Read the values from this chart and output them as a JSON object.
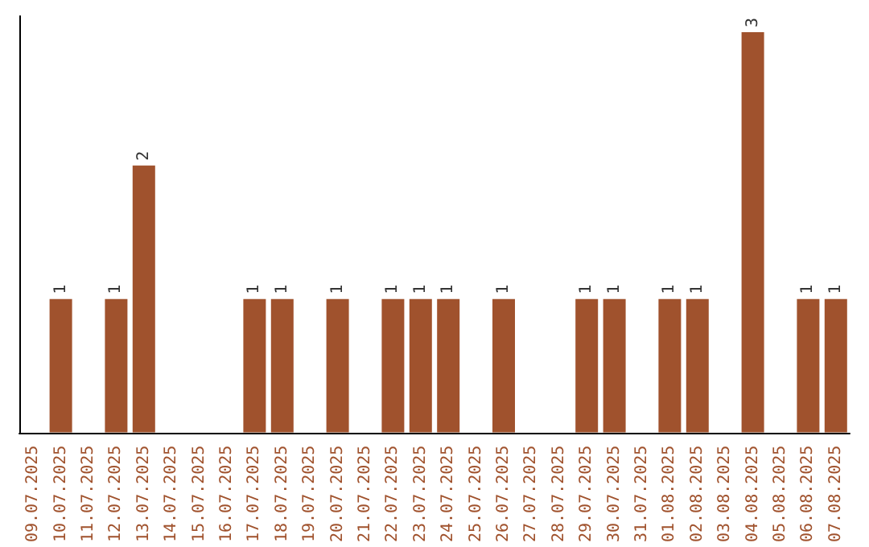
{
  "chart_data": {
    "type": "bar",
    "categories": [
      "09.07.2025",
      "10.07.2025",
      "11.07.2025",
      "12.07.2025",
      "13.07.2025",
      "14.07.2025",
      "15.07.2025",
      "16.07.2025",
      "17.07.2025",
      "18.07.2025",
      "19.07.2025",
      "20.07.2025",
      "21.07.2025",
      "22.07.2025",
      "23.07.2025",
      "24.07.2025",
      "25.07.2025",
      "26.07.2025",
      "27.07.2025",
      "28.07.2025",
      "29.07.2025",
      "30.07.2025",
      "31.07.2025",
      "01.08.2025",
      "02.08.2025",
      "03.08.2025",
      "04.08.2025",
      "05.08.2025",
      "06.08.2025",
      "07.08.2025"
    ],
    "values": [
      0,
      1,
      0,
      1,
      2,
      0,
      0,
      0,
      1,
      1,
      0,
      1,
      0,
      1,
      1,
      1,
      0,
      1,
      0,
      0,
      1,
      1,
      0,
      1,
      1,
      0,
      3,
      0,
      1,
      1
    ],
    "value_labels": [
      null,
      "1",
      null,
      "1",
      "2",
      null,
      null,
      null,
      "1",
      "1",
      null,
      "1",
      null,
      "1",
      "1",
      "1",
      null,
      "1",
      null,
      null,
      "1",
      "1",
      null,
      "1",
      "1",
      null,
      "3",
      null,
      "1",
      "1"
    ],
    "color": "#a0522d",
    "tick_labels": "x"
  }
}
